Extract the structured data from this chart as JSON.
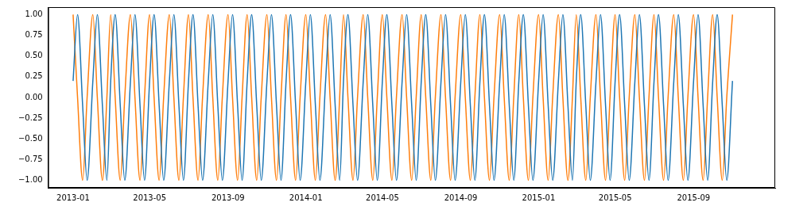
{
  "chart_data": {
    "type": "line",
    "x": [
      "2013-01-01",
      "2013-01-08",
      "2013-01-16",
      "2013-01-23",
      "2013-02-01",
      "2013-02-08",
      "2013-02-16",
      "2013-02-23",
      "2013-03-01",
      "2013-03-08",
      "2013-03-16",
      "2013-03-23",
      "2013-04-01",
      "2013-04-08",
      "2013-04-16",
      "2013-04-23",
      "2013-05-01",
      "2013-05-08",
      "2013-05-16",
      "2013-05-23",
      "2013-06-01",
      "2013-06-08",
      "2013-06-16",
      "2013-06-23",
      "2013-07-01",
      "2013-07-08",
      "2013-07-16",
      "2013-07-23",
      "2013-08-01",
      "2013-08-08",
      "2013-08-16",
      "2013-08-23",
      "2013-09-01",
      "2013-09-08",
      "2013-09-16",
      "2013-09-23",
      "2013-10-01",
      "2013-10-08",
      "2013-10-16",
      "2013-10-23",
      "2013-11-01",
      "2013-11-08",
      "2013-11-16",
      "2013-11-23",
      "2013-12-01",
      "2013-12-08",
      "2013-12-16",
      "2013-12-23",
      "2014-01-01",
      "2014-01-08",
      "2014-01-16",
      "2014-01-23",
      "2014-02-01",
      "2014-02-08",
      "2014-02-16",
      "2014-02-23",
      "2014-03-01",
      "2014-03-08",
      "2014-03-16",
      "2014-03-23",
      "2014-04-01",
      "2014-04-08",
      "2014-04-16",
      "2014-04-23",
      "2014-05-01",
      "2014-05-08",
      "2014-05-16",
      "2014-05-23",
      "2014-06-01",
      "2014-06-08",
      "2014-06-16",
      "2014-06-23",
      "2014-07-01",
      "2014-07-08",
      "2014-07-16",
      "2014-07-23",
      "2014-08-01",
      "2014-08-08",
      "2014-08-16",
      "2014-08-23",
      "2014-09-01",
      "2014-09-08",
      "2014-09-16",
      "2014-09-23",
      "2014-10-01",
      "2014-10-08",
      "2014-10-16",
      "2014-10-23",
      "2014-11-01",
      "2014-11-08",
      "2014-11-16",
      "2014-11-23",
      "2014-12-01",
      "2014-12-08",
      "2014-12-16",
      "2014-12-23",
      "2015-01-01",
      "2015-01-08",
      "2015-01-16",
      "2015-01-23",
      "2015-02-01",
      "2015-02-08",
      "2015-02-16",
      "2015-02-23",
      "2015-03-01",
      "2015-03-08",
      "2015-03-16",
      "2015-03-23",
      "2015-04-01",
      "2015-04-08",
      "2015-04-16",
      "2015-04-23",
      "2015-05-01",
      "2015-05-08",
      "2015-05-16",
      "2015-05-23",
      "2015-06-01",
      "2015-06-08",
      "2015-06-16",
      "2015-06-23",
      "2015-07-01",
      "2015-07-08",
      "2015-07-16",
      "2015-07-23",
      "2015-08-01",
      "2015-08-08",
      "2015-08-16",
      "2015-08-23",
      "2015-09-01",
      "2015-09-08",
      "2015-09-16",
      "2015-09-23",
      "2015-10-01",
      "2015-10-08",
      "2015-10-16",
      "2015-10-23",
      "2015-11-01"
    ],
    "series": [
      {
        "color": "#1f77b4",
        "values": [
          0.2,
          1,
          -0.1,
          -1,
          0.2,
          1,
          -0.1,
          -1,
          0.2,
          1,
          -0.1,
          -1,
          0.2,
          1,
          -0.1,
          -1,
          0.2,
          1,
          -0.1,
          -1,
          0.2,
          1,
          -0.1,
          -1,
          0.2,
          1,
          -0.1,
          -1,
          0.2,
          1,
          -0.1,
          -1,
          0.2,
          1,
          -0.1,
          -1,
          0.2,
          1,
          -0.1,
          -1,
          0.2,
          1,
          -0.1,
          -1,
          0.2,
          1,
          -0.1,
          -1,
          0.2,
          1,
          -0.1,
          -1,
          0.2,
          1,
          -0.1,
          -1,
          0.2,
          1,
          -0.1,
          -1,
          0.2,
          1,
          -0.1,
          -1,
          0.2,
          1,
          -0.1,
          -1,
          0.2,
          1,
          -0.1,
          -1,
          0.2,
          1,
          -0.1,
          -1,
          0.2,
          1,
          -0.1,
          -1,
          0.2,
          1,
          -0.1,
          -1,
          0.2,
          1,
          -0.1,
          -1,
          0.2,
          1,
          -0.1,
          -1,
          0.2,
          1,
          -0.1,
          -1,
          0.2,
          1,
          -0.1,
          -1,
          0.2,
          1,
          -0.1,
          -1,
          0.2,
          1,
          -0.1,
          -1,
          0.2,
          1,
          -0.1,
          -1,
          0.2,
          1,
          -0.1,
          -1,
          0.2,
          1,
          -0.1,
          -1,
          0.2,
          1,
          -0.1,
          -1,
          0.2,
          1,
          -0.1,
          -1,
          0.2,
          1,
          -0.1,
          -1,
          0.2,
          1,
          -0.1,
          -1,
          0.2
        ]
      },
      {
        "color": "#ff7f0e",
        "values": [
          1,
          0,
          -1,
          0,
          1,
          0,
          -1,
          0,
          1,
          0,
          -1,
          0,
          1,
          0,
          -1,
          0,
          1,
          0,
          -1,
          0,
          1,
          0,
          -1,
          0,
          1,
          0,
          -1,
          0,
          1,
          0,
          -1,
          0,
          1,
          0,
          -1,
          0,
          1,
          0,
          -1,
          0,
          1,
          0,
          -1,
          0,
          1,
          0,
          -1,
          0,
          1,
          0,
          -1,
          0,
          1,
          0,
          -1,
          0,
          1,
          0,
          -1,
          0,
          1,
          0,
          -1,
          0,
          1,
          0,
          -1,
          0,
          1,
          0,
          -1,
          0,
          1,
          0,
          -1,
          0,
          1,
          0,
          -1,
          0,
          1,
          0,
          -1,
          0,
          1,
          0,
          -1,
          0,
          1,
          0,
          -1,
          0,
          1,
          0,
          -1,
          0,
          1,
          0,
          -1,
          0,
          1,
          0,
          -1,
          0,
          1,
          0,
          -1,
          0,
          1,
          0,
          -1,
          0,
          1,
          0,
          -1,
          0,
          1,
          0,
          -1,
          0,
          1,
          0,
          -1,
          0,
          1,
          0,
          -1,
          0,
          1,
          0,
          -1,
          0,
          1,
          0,
          -1,
          0,
          1
        ]
      }
    ],
    "xlim": [
      "2012-11-23",
      "2016-01-07"
    ],
    "xticks": [
      "2013-01",
      "2013-05",
      "2013-09",
      "2014-01",
      "2014-05",
      "2014-09",
      "2015-01",
      "2015-05",
      "2015-09"
    ],
    "ylim": [
      -1.09,
      1.09
    ],
    "yticks": [
      {
        "value": -1,
        "label": "−1.00"
      },
      {
        "value": -0.75,
        "label": "−0.75"
      },
      {
        "value": -0.5,
        "label": "−0.50"
      },
      {
        "value": -0.25,
        "label": "−0.25"
      },
      {
        "value": 0,
        "label": "0.00"
      },
      {
        "value": 0.25,
        "label": "0.25"
      },
      {
        "value": 0.5,
        "label": "0.50"
      },
      {
        "value": 0.75,
        "label": "0.75"
      },
      {
        "value": 1,
        "label": "1.00"
      }
    ],
    "grid": false,
    "legend": false,
    "marker": "none",
    "line_style": "solid"
  }
}
